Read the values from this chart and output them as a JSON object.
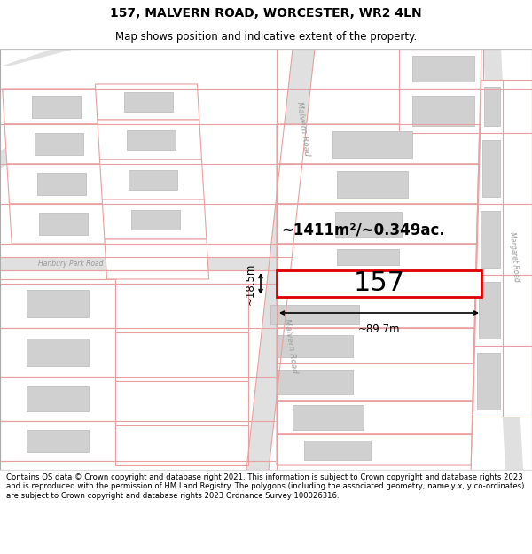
{
  "title": "157, MALVERN ROAD, WORCESTER, WR2 4LN",
  "subtitle": "Map shows position and indicative extent of the property.",
  "footer": "Contains OS data © Crown copyright and database right 2021. This information is subject to Crown copyright and database rights 2023 and is reproduced with the permission of HM Land Registry. The polygons (including the associated geometry, namely x, y co-ordinates) are subject to Crown copyright and database rights 2023 Ordnance Survey 100026316.",
  "area_label": "~1411m²/~0.349ac.",
  "width_label": "~89.7m",
  "height_label": "~18.5m",
  "number_label": "157",
  "bg_color": "#ffffff",
  "plot_line_color": "#e8a0a0",
  "highlight_line_color": "#dd0000",
  "building_fill": "#d0d0d0",
  "building_edge": "#b8b8b8",
  "road_fill": "#e0e0e0",
  "road_text_color": "#888888",
  "map_bg": "#ffffff"
}
